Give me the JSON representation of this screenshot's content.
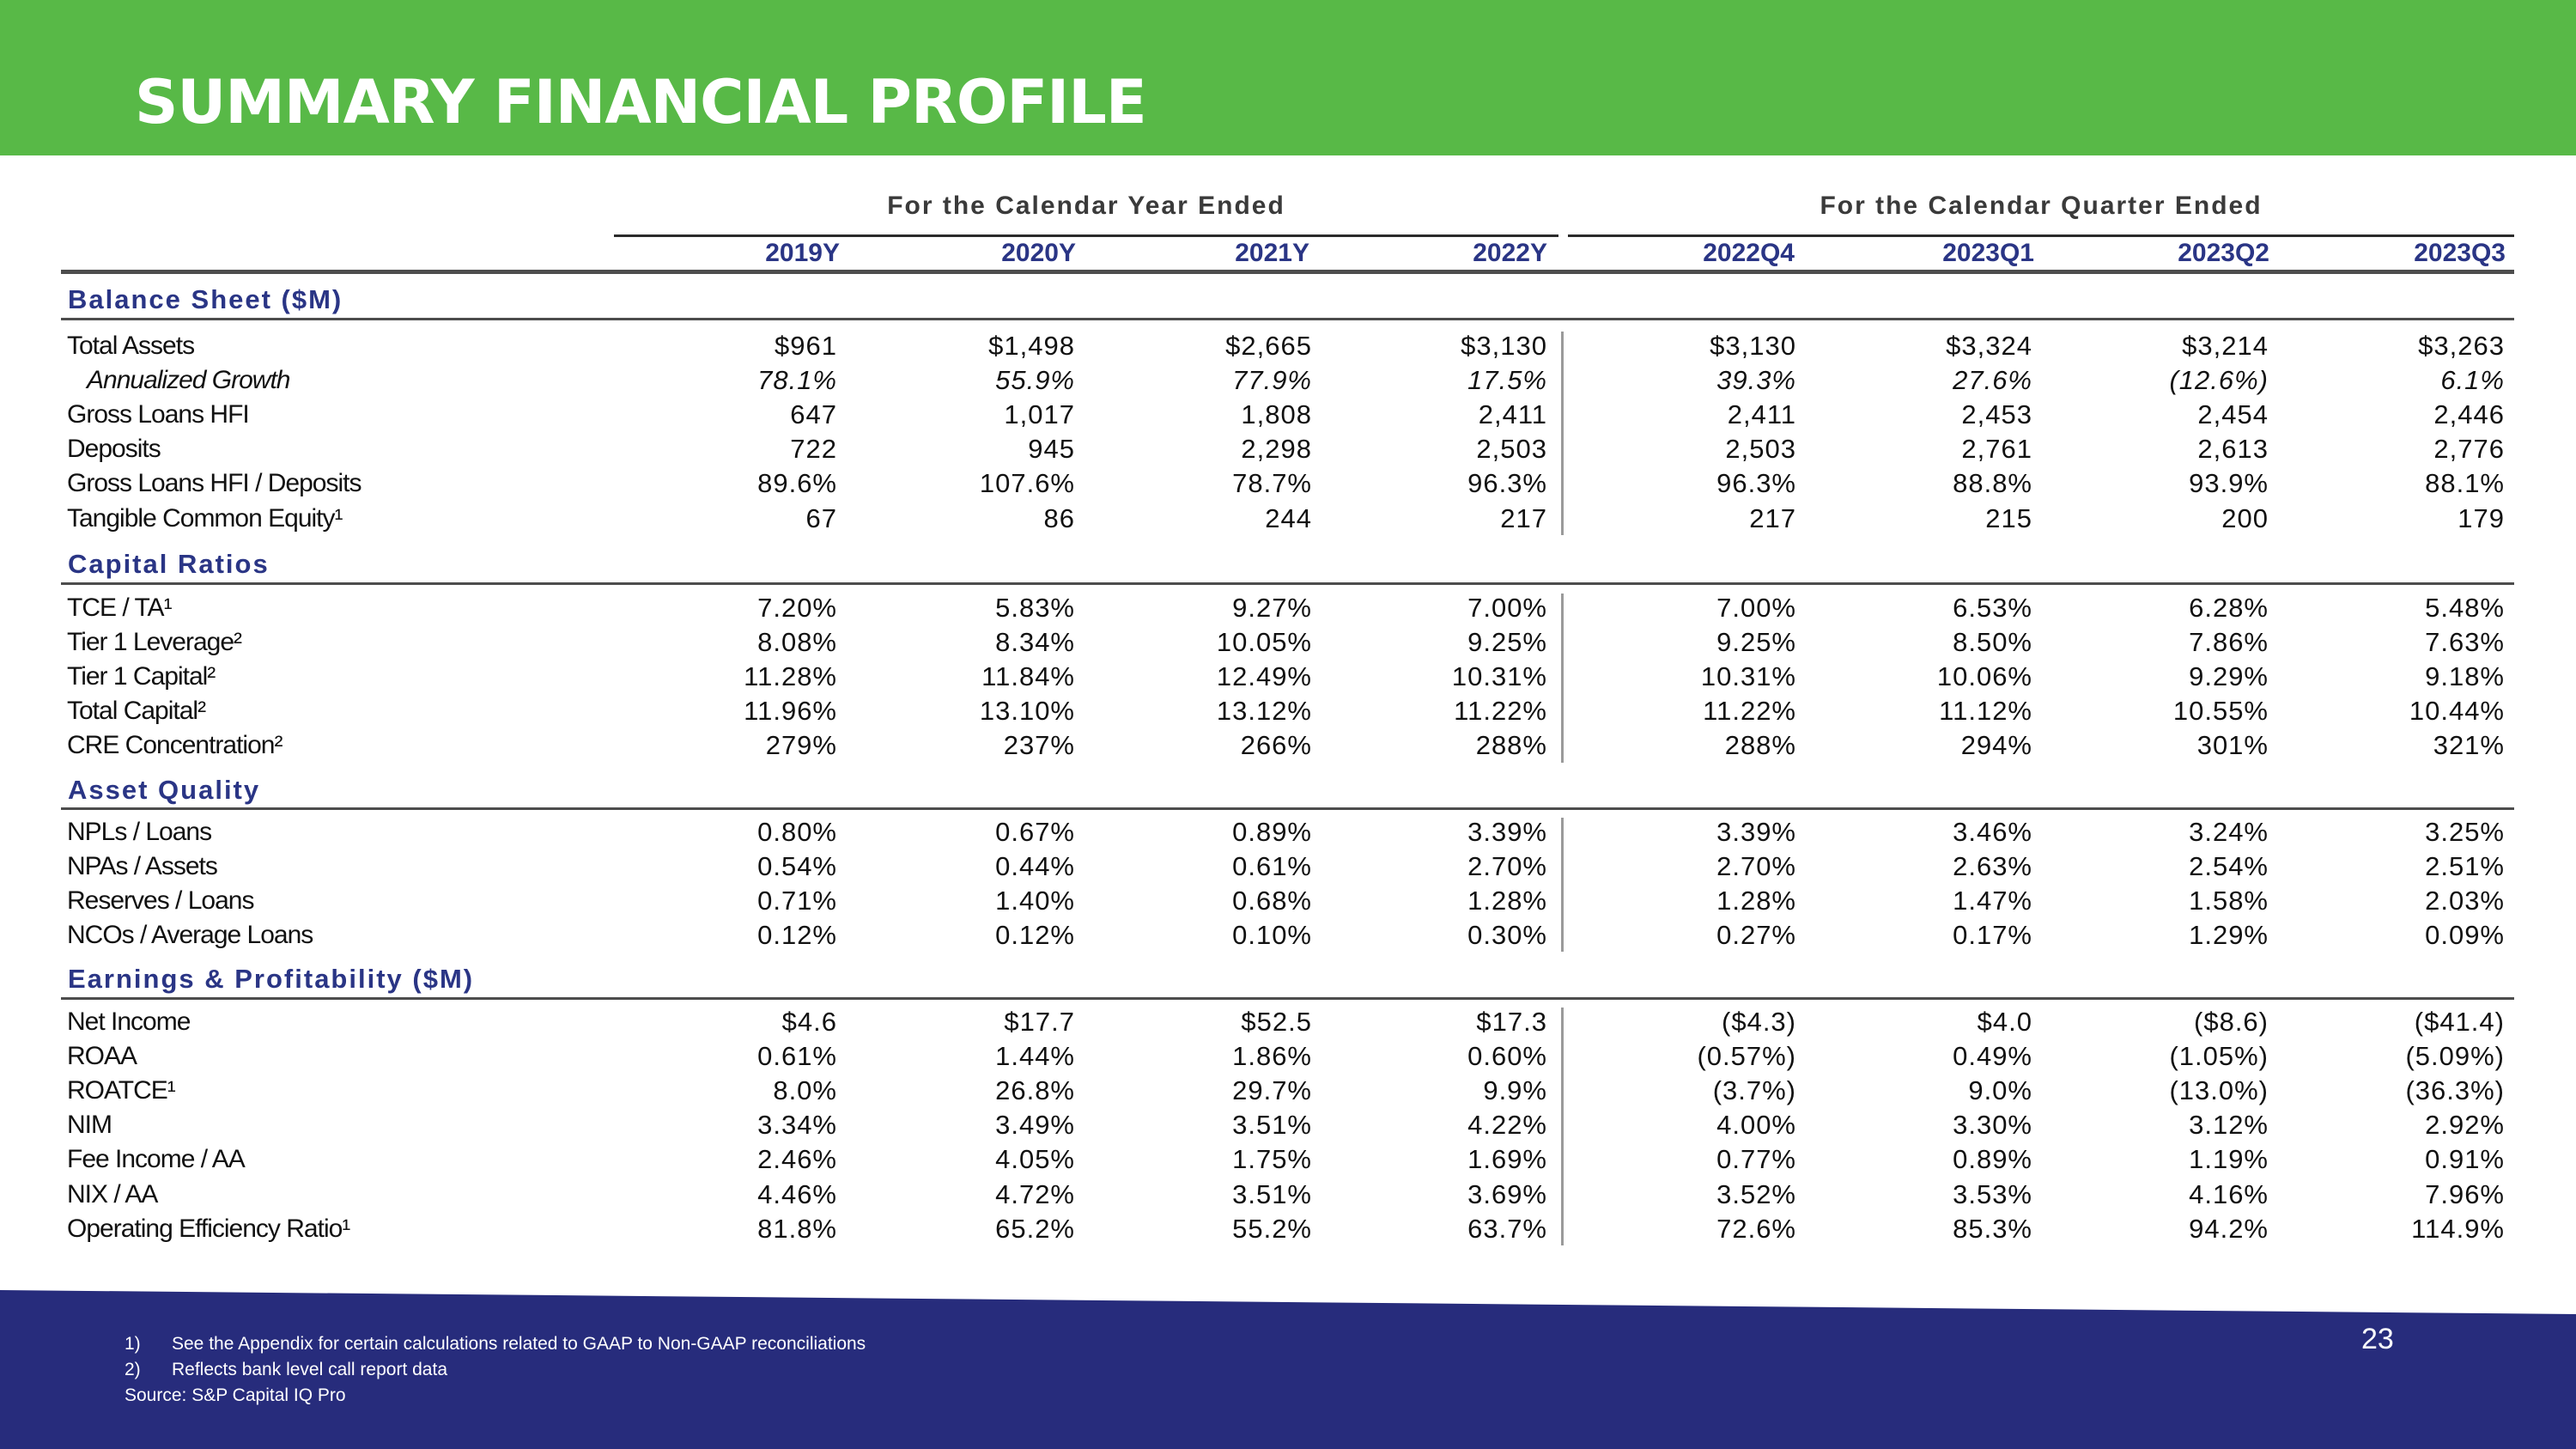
{
  "title": "SUMMARY FINANCIAL PROFILE",
  "groups": {
    "annual": "For the Calendar Year Ended",
    "quarterly": "For the Calendar Quarter Ended"
  },
  "columns": [
    "2019Y",
    "2020Y",
    "2021Y",
    "2022Y",
    "2022Q4",
    "2023Q1",
    "2023Q2",
    "2023Q3"
  ],
  "sections": [
    {
      "title": "Balance Sheet ($M)",
      "rows": [
        {
          "label": "Total Assets",
          "italic": false,
          "values": [
            "$961",
            "$1,498",
            "$2,665",
            "$3,130",
            "$3,130",
            "$3,324",
            "$3,214",
            "$3,263"
          ]
        },
        {
          "label": "Annualized Growth",
          "italic": true,
          "values": [
            "78.1%",
            "55.9%",
            "77.9%",
            "17.5%",
            "39.3%",
            "27.6%",
            "(12.6%)",
            "6.1%"
          ]
        },
        {
          "label": "Gross Loans HFI",
          "italic": false,
          "values": [
            "647",
            "1,017",
            "1,808",
            "2,411",
            "2,411",
            "2,453",
            "2,454",
            "2,446"
          ]
        },
        {
          "label": "Deposits",
          "italic": false,
          "values": [
            "722",
            "945",
            "2,298",
            "2,503",
            "2,503",
            "2,761",
            "2,613",
            "2,776"
          ]
        },
        {
          "label": "Gross Loans HFI / Deposits",
          "italic": false,
          "values": [
            "89.6%",
            "107.6%",
            "78.7%",
            "96.3%",
            "96.3%",
            "88.8%",
            "93.9%",
            "88.1%"
          ]
        },
        {
          "label": "Tangible Common Equity¹",
          "italic": false,
          "values": [
            "67",
            "86",
            "244",
            "217",
            "217",
            "215",
            "200",
            "179"
          ]
        }
      ]
    },
    {
      "title": "Capital Ratios",
      "rows": [
        {
          "label": "TCE / TA¹",
          "italic": false,
          "values": [
            "7.20%",
            "5.83%",
            "9.27%",
            "7.00%",
            "7.00%",
            "6.53%",
            "6.28%",
            "5.48%"
          ]
        },
        {
          "label": "Tier 1 Leverage²",
          "italic": false,
          "values": [
            "8.08%",
            "8.34%",
            "10.05%",
            "9.25%",
            "9.25%",
            "8.50%",
            "7.86%",
            "7.63%"
          ]
        },
        {
          "label": "Tier 1 Capital²",
          "italic": false,
          "values": [
            "11.28%",
            "11.84%",
            "12.49%",
            "10.31%",
            "10.31%",
            "10.06%",
            "9.29%",
            "9.18%"
          ]
        },
        {
          "label": "Total Capital²",
          "italic": false,
          "values": [
            "11.96%",
            "13.10%",
            "13.12%",
            "11.22%",
            "11.22%",
            "11.12%",
            "10.55%",
            "10.44%"
          ]
        },
        {
          "label": "CRE Concentration²",
          "italic": false,
          "values": [
            "279%",
            "237%",
            "266%",
            "288%",
            "288%",
            "294%",
            "301%",
            "321%"
          ]
        }
      ]
    },
    {
      "title": "Asset Quality",
      "rows": [
        {
          "label": "NPLs / Loans",
          "italic": false,
          "values": [
            "0.80%",
            "0.67%",
            "0.89%",
            "3.39%",
            "3.39%",
            "3.46%",
            "3.24%",
            "3.25%"
          ]
        },
        {
          "label": "NPAs / Assets",
          "italic": false,
          "values": [
            "0.54%",
            "0.44%",
            "0.61%",
            "2.70%",
            "2.70%",
            "2.63%",
            "2.54%",
            "2.51%"
          ]
        },
        {
          "label": "Reserves / Loans",
          "italic": false,
          "values": [
            "0.71%",
            "1.40%",
            "0.68%",
            "1.28%",
            "1.28%",
            "1.47%",
            "1.58%",
            "2.03%"
          ]
        },
        {
          "label": "NCOs / Average Loans",
          "italic": false,
          "values": [
            "0.12%",
            "0.12%",
            "0.10%",
            "0.30%",
            "0.27%",
            "0.17%",
            "1.29%",
            "0.09%"
          ]
        }
      ]
    },
    {
      "title": "Earnings & Profitability ($M)",
      "rows": [
        {
          "label": "Net Income",
          "italic": false,
          "values": [
            "$4.6",
            "$17.7",
            "$52.5",
            "$17.3",
            "($4.3)",
            "$4.0",
            "($8.6)",
            "($41.4)"
          ]
        },
        {
          "label": "ROAA",
          "italic": false,
          "values": [
            "0.61%",
            "1.44%",
            "1.86%",
            "0.60%",
            "(0.57%)",
            "0.49%",
            "(1.05%)",
            "(5.09%)"
          ]
        },
        {
          "label": "ROATCE¹",
          "italic": false,
          "values": [
            "8.0%",
            "26.8%",
            "29.7%",
            "9.9%",
            "(3.7%)",
            "9.0%",
            "(13.0%)",
            "(36.3%)"
          ]
        },
        {
          "label": "NIM",
          "italic": false,
          "values": [
            "3.34%",
            "3.49%",
            "3.51%",
            "4.22%",
            "4.00%",
            "3.30%",
            "3.12%",
            "2.92%"
          ]
        },
        {
          "label": "Fee Income / AA",
          "italic": false,
          "values": [
            "2.46%",
            "4.05%",
            "1.75%",
            "1.69%",
            "0.77%",
            "0.89%",
            "1.19%",
            "0.91%"
          ]
        },
        {
          "label": "NIX / AA",
          "italic": false,
          "values": [
            "4.46%",
            "4.72%",
            "3.51%",
            "3.69%",
            "3.52%",
            "3.53%",
            "4.16%",
            "7.96%"
          ]
        },
        {
          "label": "Operating Efficiency Ratio¹",
          "italic": false,
          "values": [
            "81.8%",
            "65.2%",
            "55.2%",
            "63.7%",
            "72.6%",
            "85.3%",
            "94.2%",
            "114.9%"
          ]
        }
      ]
    }
  ],
  "footnotes": [
    {
      "num": "1)",
      "text": "See the Appendix for certain calculations related to GAAP to Non-GAAP reconciliations"
    },
    {
      "num": "2)",
      "text": "Reflects bank level call report data"
    }
  ],
  "source": "Source: S&P Capital IQ Pro",
  "page_number": "23",
  "colors": {
    "header_green": "#58b947",
    "footer_navy": "#272c7c",
    "section_blue": "#2a3585"
  }
}
